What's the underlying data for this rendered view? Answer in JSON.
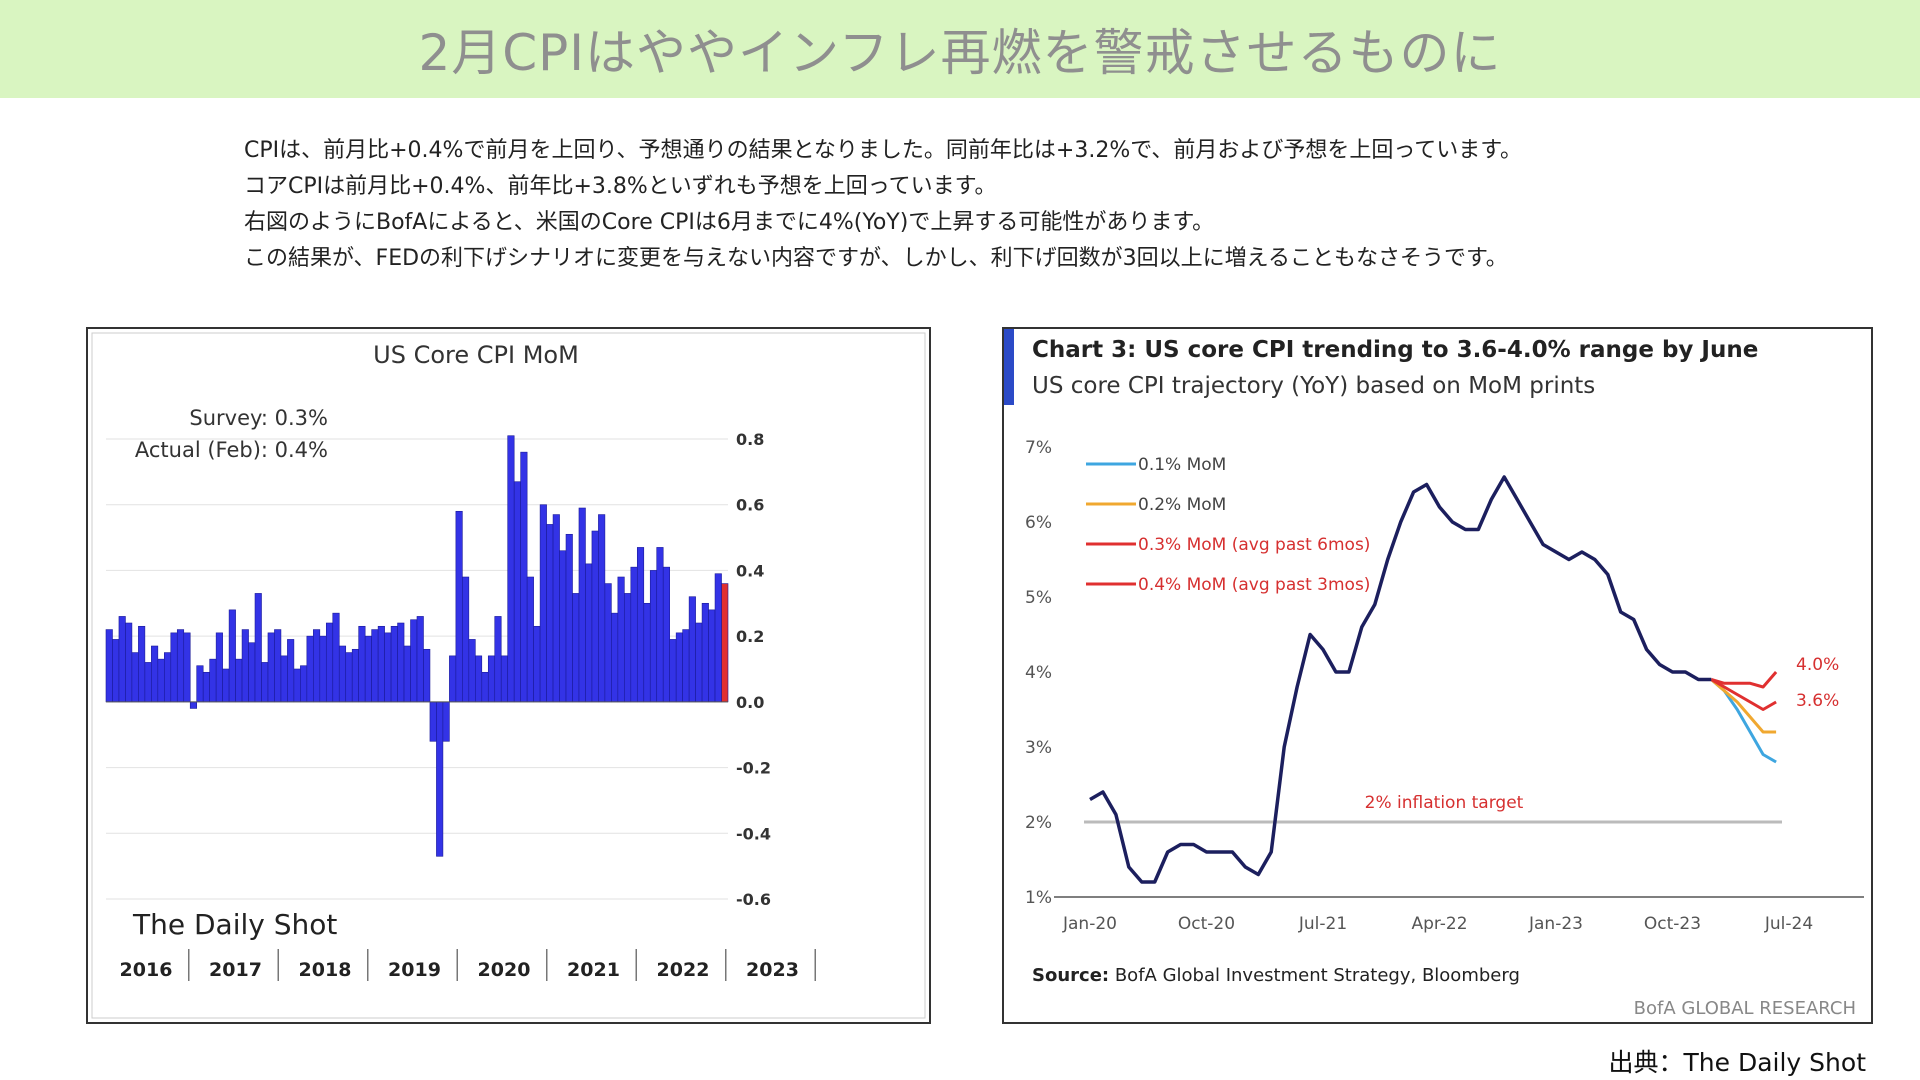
{
  "header": {
    "title": "2月CPIはややインフレ再燃を警戒させるものに",
    "bg_color": "#d9f5c1"
  },
  "summary": {
    "lines": [
      "CPIは、前月比+0.4%で前月を上回り、予想通りの結果となりました。同前年比は+3.2%で、前月および予想を上回っています。",
      "コアCPIは前月比+0.4%、前年比+3.8%といずれも予想を上回っています。",
      "右図のようにBofAによると、米国のCore CPIは6月までに4%(YoY)で上昇する可能性があります。",
      "この結果が、FEDの利下げシナリオに変更を与えない内容ですが、しかし、利下げ回数が3回以上に増えることもなさそうです。"
    ]
  },
  "chart_data": [
    {
      "type": "bar",
      "title": "US Core CPI MoM",
      "annotations": [
        "Survey:  0.3%",
        "Actual (Feb):  0.4%"
      ],
      "watermark": "The Daily Shot",
      "year_labels": [
        "2016",
        "2017",
        "2018",
        "2019",
        "2020",
        "2021",
        "2022",
        "2023"
      ],
      "y_ticks": [
        "0.8",
        "0.6",
        "0.4",
        "0.2",
        "0.0",
        "-0.2",
        "-0.4",
        "-0.6"
      ],
      "ylim": [
        -0.6,
        0.8
      ],
      "grid": true,
      "colors": {
        "bar": "#3333e6",
        "latest": "#e03030"
      },
      "values": [
        0.22,
        0.19,
        0.26,
        0.24,
        0.15,
        0.23,
        0.12,
        0.17,
        0.13,
        0.15,
        0.21,
        0.22,
        0.21,
        -0.02,
        0.11,
        0.09,
        0.13,
        0.21,
        0.1,
        0.28,
        0.13,
        0.22,
        0.18,
        0.33,
        0.12,
        0.21,
        0.22,
        0.14,
        0.19,
        0.1,
        0.11,
        0.2,
        0.22,
        0.2,
        0.24,
        0.27,
        0.17,
        0.15,
        0.16,
        0.23,
        0.2,
        0.22,
        0.23,
        0.21,
        0.23,
        0.24,
        0.17,
        0.25,
        0.26,
        0.16,
        -0.12,
        -0.47,
        -0.12,
        0.14,
        0.58,
        0.38,
        0.19,
        0.14,
        0.09,
        0.14,
        0.26,
        0.14,
        0.81,
        0.67,
        0.76,
        0.38,
        0.23,
        0.6,
        0.54,
        0.57,
        0.46,
        0.51,
        0.33,
        0.59,
        0.42,
        0.52,
        0.57,
        0.36,
        0.27,
        0.38,
        0.33,
        0.41,
        0.47,
        0.3,
        0.4,
        0.47,
        0.41,
        0.19,
        0.21,
        0.22,
        0.32,
        0.24,
        0.3,
        0.28,
        0.39,
        0.36
      ]
    },
    {
      "type": "line",
      "title": "Chart 3: US core CPI trending to 3.6-4.0% range by June",
      "subtitle": "US core CPI trajectory (YoY) based on MoM prints",
      "y_ticks": [
        "7%",
        "6%",
        "5%",
        "4%",
        "3%",
        "2%",
        "1%"
      ],
      "ylim": [
        1,
        7
      ],
      "x_ticks": [
        "Jan-20",
        "Oct-20",
        "Jul-21",
        "Apr-22",
        "Jan-23",
        "Oct-23",
        "Jul-24"
      ],
      "legend": [
        "0.1% MoM",
        "0.2% MoM",
        "0.3% MoM (avg past 6mos)",
        "0.4% MoM (avg past 3mos)"
      ],
      "legend_position": "top-left",
      "target_label": "2% inflation target",
      "target_value": 2.0,
      "end_labels": [
        "4.0%",
        "3.6%"
      ],
      "source_label": "Source:",
      "source_text": " BofA Global Investment Strategy, Bloomberg",
      "footer_brand": "BofA GLOBAL RESEARCH",
      "colors": {
        "history": "#1c1f5e",
        "mom01": "#3ea6e0",
        "mom02": "#f0a830",
        "mom03": "#e03030",
        "mom04": "#e03030",
        "target": "#bbbbbb",
        "accent": "#2b4ac7"
      },
      "history": [
        {
          "x": "2020-01",
          "y": 2.3
        },
        {
          "x": "2020-02",
          "y": 2.4
        },
        {
          "x": "2020-03",
          "y": 2.1
        },
        {
          "x": "2020-04",
          "y": 1.4
        },
        {
          "x": "2020-05",
          "y": 1.2
        },
        {
          "x": "2020-06",
          "y": 1.2
        },
        {
          "x": "2020-07",
          "y": 1.6
        },
        {
          "x": "2020-08",
          "y": 1.7
        },
        {
          "x": "2020-09",
          "y": 1.7
        },
        {
          "x": "2020-10",
          "y": 1.6
        },
        {
          "x": "2020-11",
          "y": 1.6
        },
        {
          "x": "2020-12",
          "y": 1.6
        },
        {
          "x": "2021-01",
          "y": 1.4
        },
        {
          "x": "2021-02",
          "y": 1.3
        },
        {
          "x": "2021-03",
          "y": 1.6
        },
        {
          "x": "2021-04",
          "y": 3.0
        },
        {
          "x": "2021-05",
          "y": 3.8
        },
        {
          "x": "2021-06",
          "y": 4.5
        },
        {
          "x": "2021-07",
          "y": 4.3
        },
        {
          "x": "2021-08",
          "y": 4.0
        },
        {
          "x": "2021-09",
          "y": 4.0
        },
        {
          "x": "2021-10",
          "y": 4.6
        },
        {
          "x": "2021-11",
          "y": 4.9
        },
        {
          "x": "2021-12",
          "y": 5.5
        },
        {
          "x": "2022-01",
          "y": 6.0
        },
        {
          "x": "2022-02",
          "y": 6.4
        },
        {
          "x": "2022-03",
          "y": 6.5
        },
        {
          "x": "2022-04",
          "y": 6.2
        },
        {
          "x": "2022-05",
          "y": 6.0
        },
        {
          "x": "2022-06",
          "y": 5.9
        },
        {
          "x": "2022-07",
          "y": 5.9
        },
        {
          "x": "2022-08",
          "y": 6.3
        },
        {
          "x": "2022-09",
          "y": 6.6
        },
        {
          "x": "2022-10",
          "y": 6.3
        },
        {
          "x": "2022-11",
          "y": 6.0
        },
        {
          "x": "2022-12",
          "y": 5.7
        },
        {
          "x": "2023-01",
          "y": 5.6
        },
        {
          "x": "2023-02",
          "y": 5.5
        },
        {
          "x": "2023-03",
          "y": 5.6
        },
        {
          "x": "2023-04",
          "y": 5.5
        },
        {
          "x": "2023-05",
          "y": 5.3
        },
        {
          "x": "2023-06",
          "y": 4.8
        },
        {
          "x": "2023-07",
          "y": 4.7
        },
        {
          "x": "2023-08",
          "y": 4.3
        },
        {
          "x": "2023-09",
          "y": 4.1
        },
        {
          "x": "2023-10",
          "y": 4.0
        },
        {
          "x": "2023-11",
          "y": 4.0
        },
        {
          "x": "2023-12",
          "y": 3.9
        },
        {
          "x": "2024-01",
          "y": 3.9
        }
      ],
      "projections": [
        {
          "name": "0.1% MoM",
          "points": [
            {
              "x": "2024-01",
              "y": 3.9
            },
            {
              "x": "2024-02",
              "y": 3.75
            },
            {
              "x": "2024-03",
              "y": 3.5
            },
            {
              "x": "2024-04",
              "y": 3.2
            },
            {
              "x": "2024-05",
              "y": 2.9
            },
            {
              "x": "2024-06",
              "y": 2.8
            }
          ]
        },
        {
          "name": "0.2% MoM",
          "points": [
            {
              "x": "2024-01",
              "y": 3.9
            },
            {
              "x": "2024-02",
              "y": 3.75
            },
            {
              "x": "2024-03",
              "y": 3.6
            },
            {
              "x": "2024-04",
              "y": 3.4
            },
            {
              "x": "2024-05",
              "y": 3.2
            },
            {
              "x": "2024-06",
              "y": 3.2
            }
          ]
        },
        {
          "name": "0.3% MoM (avg past 6mos)",
          "points": [
            {
              "x": "2024-01",
              "y": 3.9
            },
            {
              "x": "2024-02",
              "y": 3.8
            },
            {
              "x": "2024-03",
              "y": 3.7
            },
            {
              "x": "2024-04",
              "y": 3.6
            },
            {
              "x": "2024-05",
              "y": 3.5
            },
            {
              "x": "2024-06",
              "y": 3.6
            }
          ]
        },
        {
          "name": "0.4% MoM (avg past 3mos)",
          "points": [
            {
              "x": "2024-01",
              "y": 3.9
            },
            {
              "x": "2024-02",
              "y": 3.85
            },
            {
              "x": "2024-03",
              "y": 3.85
            },
            {
              "x": "2024-04",
              "y": 3.85
            },
            {
              "x": "2024-05",
              "y": 3.8
            },
            {
              "x": "2024-06",
              "y": 4.0
            }
          ]
        }
      ]
    }
  ],
  "footer": {
    "source_note": "出典：The Daily Shot"
  }
}
